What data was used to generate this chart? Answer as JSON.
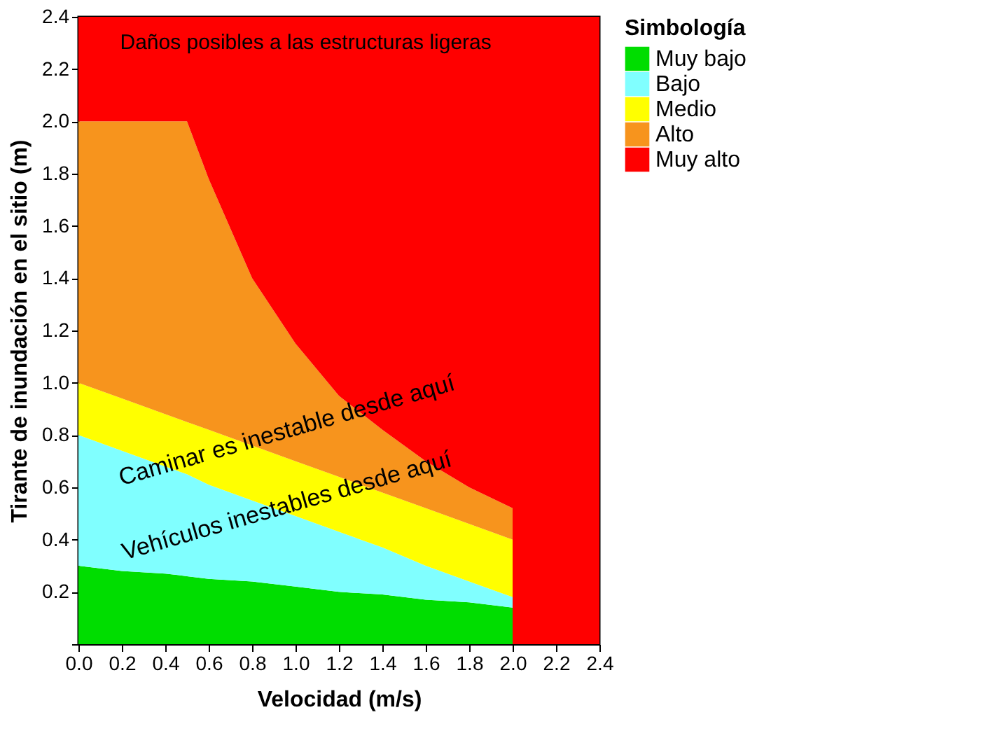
{
  "chart_data": {
    "type": "area",
    "stacked": true,
    "xlabel": "Velocidad (m/s)",
    "ylabel": "Tirante de inundación en el sitio (m)",
    "legend_title": "Simbología",
    "x": [
      0,
      0.2,
      0.4,
      0.5,
      0.6,
      0.8,
      1.0,
      1.2,
      1.4,
      1.6,
      1.8,
      2.0,
      2.0,
      2.4
    ],
    "series": [
      {
        "name": "Muy bajo",
        "color": "#00dd00",
        "values": [
          0.3,
          0.28,
          0.27,
          0.26,
          0.25,
          0.24,
          0.22,
          0.2,
          0.19,
          0.17,
          0.16,
          0.14,
          0,
          0
        ]
      },
      {
        "name": "Bajo",
        "color": "#80ffff",
        "values": [
          0.5,
          0.46,
          0.41,
          0.39,
          0.36,
          0.31,
          0.27,
          0.23,
          0.18,
          0.13,
          0.08,
          0.04,
          0,
          0
        ]
      },
      {
        "name": "Medio",
        "color": "#ffff00",
        "values": [
          0.2,
          0.2,
          0.2,
          0.2,
          0.21,
          0.21,
          0.21,
          0.21,
          0.21,
          0.22,
          0.22,
          0.22,
          0,
          0
        ]
      },
      {
        "name": "Alto",
        "color": "#f7941d",
        "values": [
          1.0,
          1.06,
          1.12,
          1.15,
          0.96,
          0.64,
          0.45,
          0.31,
          0.24,
          0.18,
          0.14,
          0.12,
          0,
          0
        ]
      },
      {
        "name": "Muy alto",
        "color": "#ff0000",
        "values": [
          0.4,
          0.4,
          0.4,
          0.4,
          0.62,
          1.0,
          1.25,
          1.45,
          1.58,
          1.7,
          1.8,
          1.88,
          2.4,
          2.4
        ]
      }
    ],
    "xlim": [
      0,
      2.4
    ],
    "ylim": [
      0,
      2.4
    ],
    "xticks": [
      {
        "value": 0,
        "label": "0.0"
      },
      0.2,
      0.4,
      0.6,
      0.8,
      {
        "value": 1,
        "label": "1.0"
      },
      1.2,
      1.4,
      1.6,
      1.8,
      {
        "value": 2,
        "label": "2.0"
      },
      2.2,
      2.4
    ],
    "yticks": [
      {
        "value": 0,
        "label": null
      },
      0.2,
      0.4,
      0.6,
      0.8,
      {
        "value": 1,
        "label": "1.0"
      },
      1.2,
      1.4,
      1.6,
      1.8,
      {
        "value": 2,
        "label": "2.0"
      },
      2.2,
      2.4
    ],
    "annotations": [
      "Daños posibles a las estructuras ligeras",
      "Caminar es inestable desde aquí",
      "Vehículos inestables desde aquí"
    ],
    "legend": "top right"
  }
}
